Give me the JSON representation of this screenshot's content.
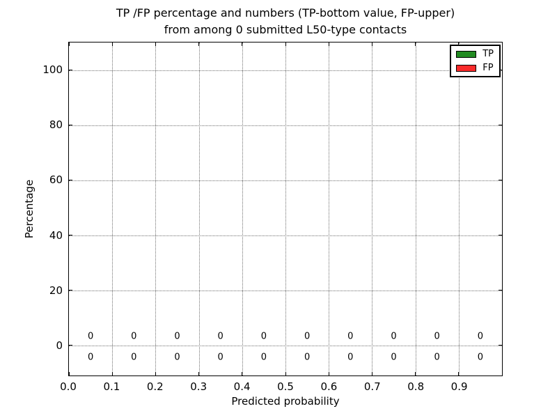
{
  "figure": {
    "title_line1": "TP /FP percentage and numbers (TP-bottom value, FP-upper)",
    "title_line2": "from among 0 submitted L50-type contacts"
  },
  "chart_data": {
    "type": "bar",
    "title": "TP /FP percentage and numbers (TP-bottom value, FP-upper)\nfrom among 0 submitted L50-type contacts",
    "xlabel": "Predicted probability",
    "ylabel": "Percentage",
    "xlim": [
      0.0,
      1.0
    ],
    "ylim": [
      -11,
      110
    ],
    "grid": true,
    "x_ticks": [
      {
        "value": 0.0,
        "label": "0.0"
      },
      {
        "value": 0.1,
        "label": "0.1"
      },
      {
        "value": 0.2,
        "label": "0.2"
      },
      {
        "value": 0.3,
        "label": "0.3"
      },
      {
        "value": 0.4,
        "label": "0.4"
      },
      {
        "value": 0.5,
        "label": "0.5"
      },
      {
        "value": 0.6,
        "label": "0.6"
      },
      {
        "value": 0.7,
        "label": "0.7"
      },
      {
        "value": 0.8,
        "label": "0.8"
      },
      {
        "value": 0.9,
        "label": "0.9"
      },
      {
        "value": 1.0,
        "label": ""
      }
    ],
    "y_ticks": [
      {
        "value": 0,
        "label": "0"
      },
      {
        "value": 20,
        "label": "20"
      },
      {
        "value": 40,
        "label": "40"
      },
      {
        "value": 60,
        "label": "60"
      },
      {
        "value": 80,
        "label": "80"
      },
      {
        "value": 100,
        "label": "100"
      }
    ],
    "categories": [
      0.05,
      0.15,
      0.25,
      0.35,
      0.45,
      0.55,
      0.65,
      0.75,
      0.85,
      0.95
    ],
    "series": [
      {
        "name": "TP",
        "color": "#228B22",
        "values": [
          0,
          0,
          0,
          0,
          0,
          0,
          0,
          0,
          0,
          0
        ]
      },
      {
        "name": "FP",
        "color": "#FA2B2B",
        "values": [
          0,
          0,
          0,
          0,
          0,
          0,
          0,
          0,
          0,
          0
        ]
      }
    ],
    "annotations": {
      "fp_row_y": 3.1,
      "tp_row_y": -4.4,
      "fp_labels": [
        "0",
        "0",
        "0",
        "0",
        "0",
        "0",
        "0",
        "0",
        "0",
        "0"
      ],
      "tp_labels": [
        "0",
        "0",
        "0",
        "0",
        "0",
        "0",
        "0",
        "0",
        "0",
        "0"
      ]
    },
    "legend": {
      "position": "upper right",
      "entries": [
        {
          "label": "TP",
          "color": "#228B22"
        },
        {
          "label": "FP",
          "color": "#FA2B2B"
        }
      ]
    }
  }
}
